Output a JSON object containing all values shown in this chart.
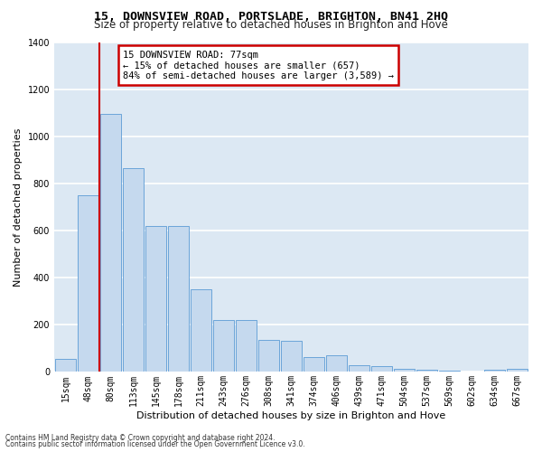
{
  "title": "15, DOWNSVIEW ROAD, PORTSLADE, BRIGHTON, BN41 2HQ",
  "subtitle": "Size of property relative to detached houses in Brighton and Hove",
  "xlabel": "Distribution of detached houses by size in Brighton and Hove",
  "ylabel": "Number of detached properties",
  "footer1": "Contains HM Land Registry data © Crown copyright and database right 2024.",
  "footer2": "Contains public sector information licensed under the Open Government Licence v3.0.",
  "annotation_line1": "15 DOWNSVIEW ROAD: 77sqm",
  "annotation_line2": "← 15% of detached houses are smaller (657)",
  "annotation_line3": "84% of semi-detached houses are larger (3,589) →",
  "bar_labels": [
    "15sqm",
    "48sqm",
    "80sqm",
    "113sqm",
    "145sqm",
    "178sqm",
    "211sqm",
    "243sqm",
    "276sqm",
    "308sqm",
    "341sqm",
    "374sqm",
    "406sqm",
    "439sqm",
    "471sqm",
    "504sqm",
    "537sqm",
    "569sqm",
    "602sqm",
    "634sqm",
    "667sqm"
  ],
  "bar_values": [
    55,
    750,
    1095,
    865,
    620,
    618,
    350,
    222,
    222,
    135,
    133,
    63,
    70,
    28,
    25,
    14,
    10,
    5,
    2,
    8,
    12
  ],
  "bar_color": "#c5d9ee",
  "bar_edge_color": "#5b9bd5",
  "vline_color": "#cc0000",
  "annotation_box_edgecolor": "#cc0000",
  "ylim_max": 1400,
  "bg_color": "#dce8f3",
  "grid_color": "#ffffff",
  "title_fontsize": 9.5,
  "subtitle_fontsize": 8.5,
  "tick_fontsize": 7,
  "ylabel_fontsize": 8,
  "xlabel_fontsize": 8,
  "annotation_fontsize": 7.5,
  "footer_fontsize": 5.5
}
